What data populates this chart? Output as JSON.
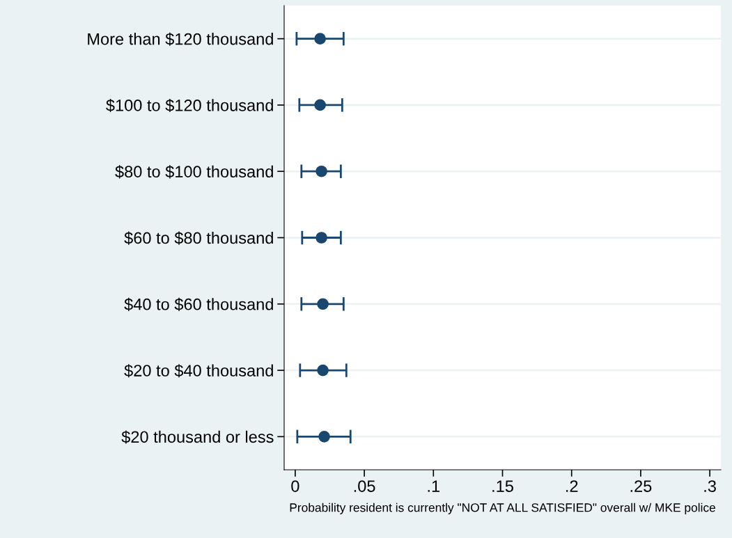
{
  "chart_data": {
    "type": "scatter",
    "orientation": "horizontal",
    "xlabel": "Probability resident is currently \"NOT AT ALL SATISFIED\" overall w/ MKE police",
    "categories": [
      "More than $120 thousand",
      "$100 to $120 thousand",
      "$80 to $100 thousand",
      "$60 to $80 thousand",
      "$40 to $60 thousand",
      "$20 to $40 thousand",
      "$20 thousand or less"
    ],
    "series": [
      {
        "color": "#1a476f",
        "values": [
          0.018,
          0.018,
          0.019,
          0.019,
          0.02,
          0.02,
          0.021
        ],
        "errors": [
          [
            0.001,
            0.035
          ],
          [
            0.003,
            0.034
          ],
          [
            0.0045,
            0.033
          ],
          [
            0.005,
            0.033
          ],
          [
            0.0045,
            0.035
          ],
          [
            0.0035,
            0.037
          ],
          [
            0.0015,
            0.04
          ]
        ]
      }
    ],
    "xlim": [
      -0.008,
      0.308
    ],
    "xticks": [
      0,
      {
        "value": 0.05,
        "label": ".05"
      },
      {
        "value": 0.1,
        "label": ".1"
      },
      {
        "value": 0.15,
        "label": ".15"
      },
      {
        "value": 0.2,
        "label": ".2"
      },
      {
        "value": 0.25,
        "label": ".25"
      },
      {
        "value": 0.3,
        "label": ".3"
      }
    ],
    "grid": "y",
    "marker": "circle",
    "legend": false
  }
}
